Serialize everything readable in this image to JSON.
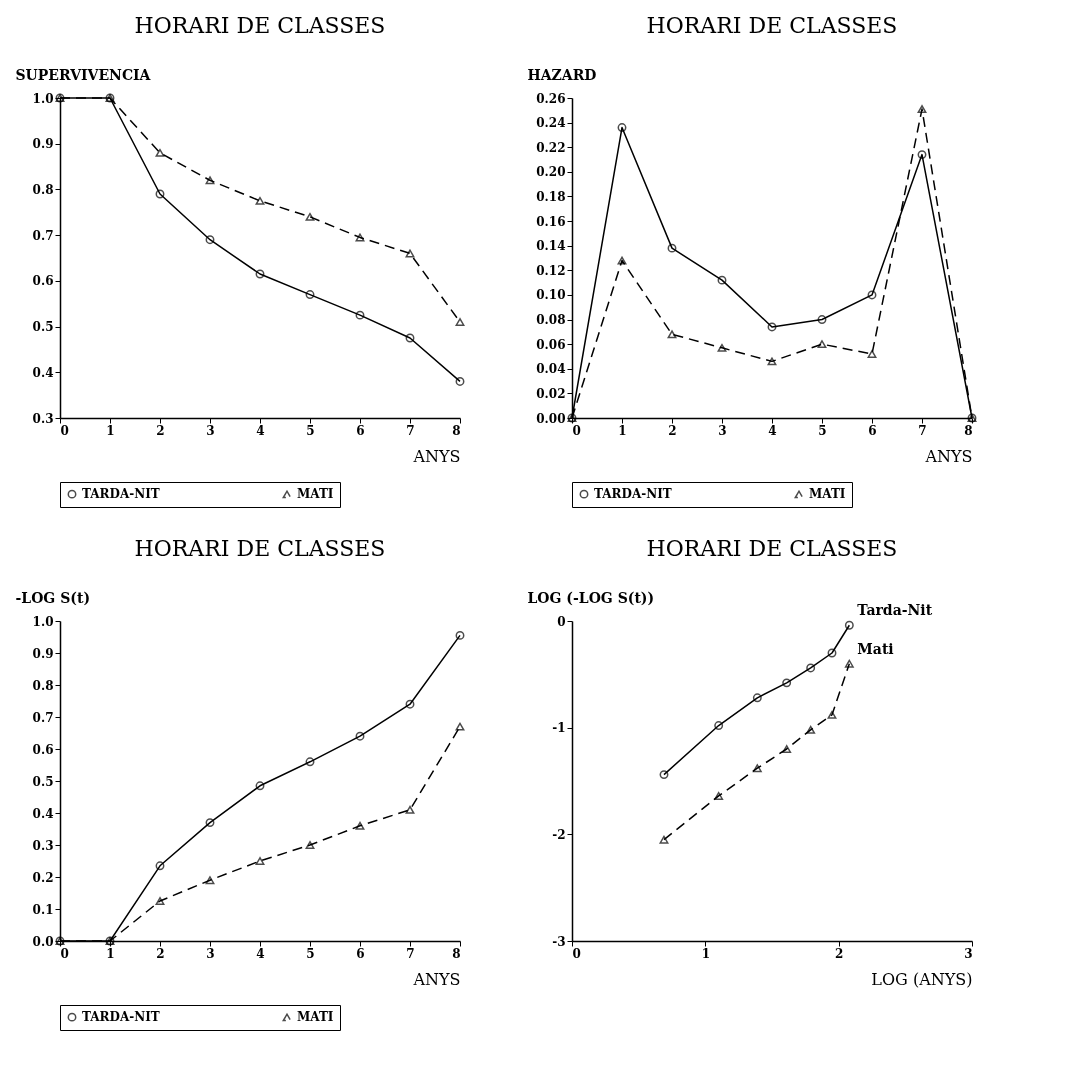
{
  "chart_data": [
    {
      "type": "line",
      "title": "HORARI DE CLASSES",
      "ylabel": "SUPERVIVENCIA",
      "xlabel": "ANYS",
      "legend": "bottom",
      "grid": false,
      "x": [
        0,
        1,
        2,
        3,
        4,
        5,
        6,
        7,
        8
      ],
      "xlim": [
        0,
        8
      ],
      "xticks": [
        0,
        1,
        2,
        3,
        4,
        5,
        6,
        7,
        8
      ],
      "ylim": [
        0.3,
        1.0
      ],
      "yticks": [
        {
          "value": 0.3,
          "label": "0.3"
        },
        {
          "value": 0.4,
          "label": "0.4"
        },
        {
          "value": 0.5,
          "label": "0.5"
        },
        {
          "value": 0.6,
          "label": "0.6"
        },
        {
          "value": 0.7,
          "label": "0.7"
        },
        {
          "value": 0.8,
          "label": "0.8"
        },
        {
          "value": 0.9,
          "label": "0.9"
        },
        {
          "value": 1.0,
          "label": "1.0"
        }
      ],
      "series": [
        {
          "name": "TARDA-NIT",
          "color": "#000000",
          "marker": "circle",
          "line_style": "solid",
          "values": [
            1.0,
            1.0,
            0.79,
            0.69,
            0.615,
            0.57,
            0.525,
            0.475,
            0.38
          ]
        },
        {
          "name": "MATI",
          "color": "#000000",
          "marker": "triangle",
          "line_style": "dashed",
          "values": [
            1.0,
            1.0,
            0.88,
            0.82,
            0.775,
            0.74,
            0.695,
            0.66,
            0.51
          ]
        }
      ]
    },
    {
      "type": "line",
      "title": "HORARI DE CLASSES",
      "ylabel": "HAZARD",
      "xlabel": "ANYS",
      "legend": "bottom",
      "grid": false,
      "x": [
        0,
        1,
        2,
        3,
        4,
        5,
        6,
        7,
        8
      ],
      "xlim": [
        0,
        8
      ],
      "xticks": [
        0,
        1,
        2,
        3,
        4,
        5,
        6,
        7,
        8
      ],
      "ylim": [
        0,
        0.26
      ],
      "yticks": [
        {
          "value": 0,
          "label": "0.00"
        },
        {
          "value": 0.02,
          "label": "0.02"
        },
        {
          "value": 0.04,
          "label": "0.04"
        },
        {
          "value": 0.06,
          "label": "0.06"
        },
        {
          "value": 0.08,
          "label": "0.08"
        },
        {
          "value": 0.1,
          "label": "0.10"
        },
        {
          "value": 0.12,
          "label": "0.12"
        },
        {
          "value": 0.14,
          "label": "0.14"
        },
        {
          "value": 0.16,
          "label": "0.16"
        },
        {
          "value": 0.18,
          "label": "0.18"
        },
        {
          "value": 0.2,
          "label": "0.20"
        },
        {
          "value": 0.22,
          "label": "0.22"
        },
        {
          "value": 0.24,
          "label": "0.24"
        },
        {
          "value": 0.26,
          "label": "0.26"
        }
      ],
      "series": [
        {
          "name": "TARDA-NIT",
          "color": "#000000",
          "marker": "circle",
          "line_style": "solid",
          "values": [
            0,
            0.236,
            0.138,
            0.112,
            0.074,
            0.08,
            0.1,
            0.214,
            0
          ]
        },
        {
          "name": "MATI",
          "color": "#000000",
          "marker": "triangle",
          "line_style": "dashed",
          "values": [
            0,
            0.128,
            0.068,
            0.057,
            0.046,
            0.06,
            0.052,
            0.251,
            0
          ]
        }
      ]
    },
    {
      "type": "line",
      "title": "HORARI DE CLASSES",
      "ylabel": "-LOG S(t)",
      "xlabel": "ANYS",
      "legend": "bottom",
      "grid": false,
      "x": [
        0,
        1,
        2,
        3,
        4,
        5,
        6,
        7,
        8
      ],
      "xlim": [
        0,
        8
      ],
      "xticks": [
        0,
        1,
        2,
        3,
        4,
        5,
        6,
        7,
        8
      ],
      "ylim": [
        0,
        1.0
      ],
      "yticks": [
        {
          "value": 0,
          "label": "0.0"
        },
        {
          "value": 0.1,
          "label": "0.1"
        },
        {
          "value": 0.2,
          "label": "0.2"
        },
        {
          "value": 0.3,
          "label": "0.3"
        },
        {
          "value": 0.4,
          "label": "0.4"
        },
        {
          "value": 0.5,
          "label": "0.5"
        },
        {
          "value": 0.6,
          "label": "0.6"
        },
        {
          "value": 0.7,
          "label": "0.7"
        },
        {
          "value": 0.8,
          "label": "0.8"
        },
        {
          "value": 0.9,
          "label": "0.9"
        },
        {
          "value": 1.0,
          "label": "1.0"
        }
      ],
      "series": [
        {
          "name": "TARDA-NIT",
          "color": "#000000",
          "marker": "circle",
          "line_style": "solid",
          "values": [
            0,
            0,
            0.235,
            0.37,
            0.485,
            0.56,
            0.64,
            0.74,
            0.955
          ]
        },
        {
          "name": "MATI",
          "color": "#000000",
          "marker": "triangle",
          "line_style": "dashed",
          "values": [
            0,
            0,
            0.125,
            0.19,
            0.25,
            0.3,
            0.36,
            0.41,
            0.67
          ]
        }
      ]
    },
    {
      "type": "line",
      "title": "HORARI DE CLASSES",
      "ylabel": "LOG (-LOG S(t))",
      "xlabel": "LOG (ANYS)",
      "legend": false,
      "grid": false,
      "x": [
        0.69,
        1.1,
        1.39,
        1.61,
        1.79,
        1.95,
        2.08
      ],
      "xlim": [
        0,
        3
      ],
      "xticks": [
        0,
        1,
        2,
        3
      ],
      "ylim": [
        -3,
        0
      ],
      "yticks": [
        -3,
        -2,
        -1,
        0
      ],
      "series": [
        {
          "name": "Tarda-Nit",
          "color": "#000000",
          "marker": "circle",
          "line_style": "solid",
          "values": [
            -1.44,
            -0.98,
            -0.72,
            -0.58,
            -0.44,
            -0.3,
            -0.04
          ]
        },
        {
          "name": "Mati",
          "color": "#000000",
          "marker": "triangle",
          "line_style": "dashed",
          "values": [
            -2.05,
            -1.64,
            -1.38,
            -1.2,
            -1.02,
            -0.88,
            -0.4
          ]
        }
      ]
    }
  ]
}
